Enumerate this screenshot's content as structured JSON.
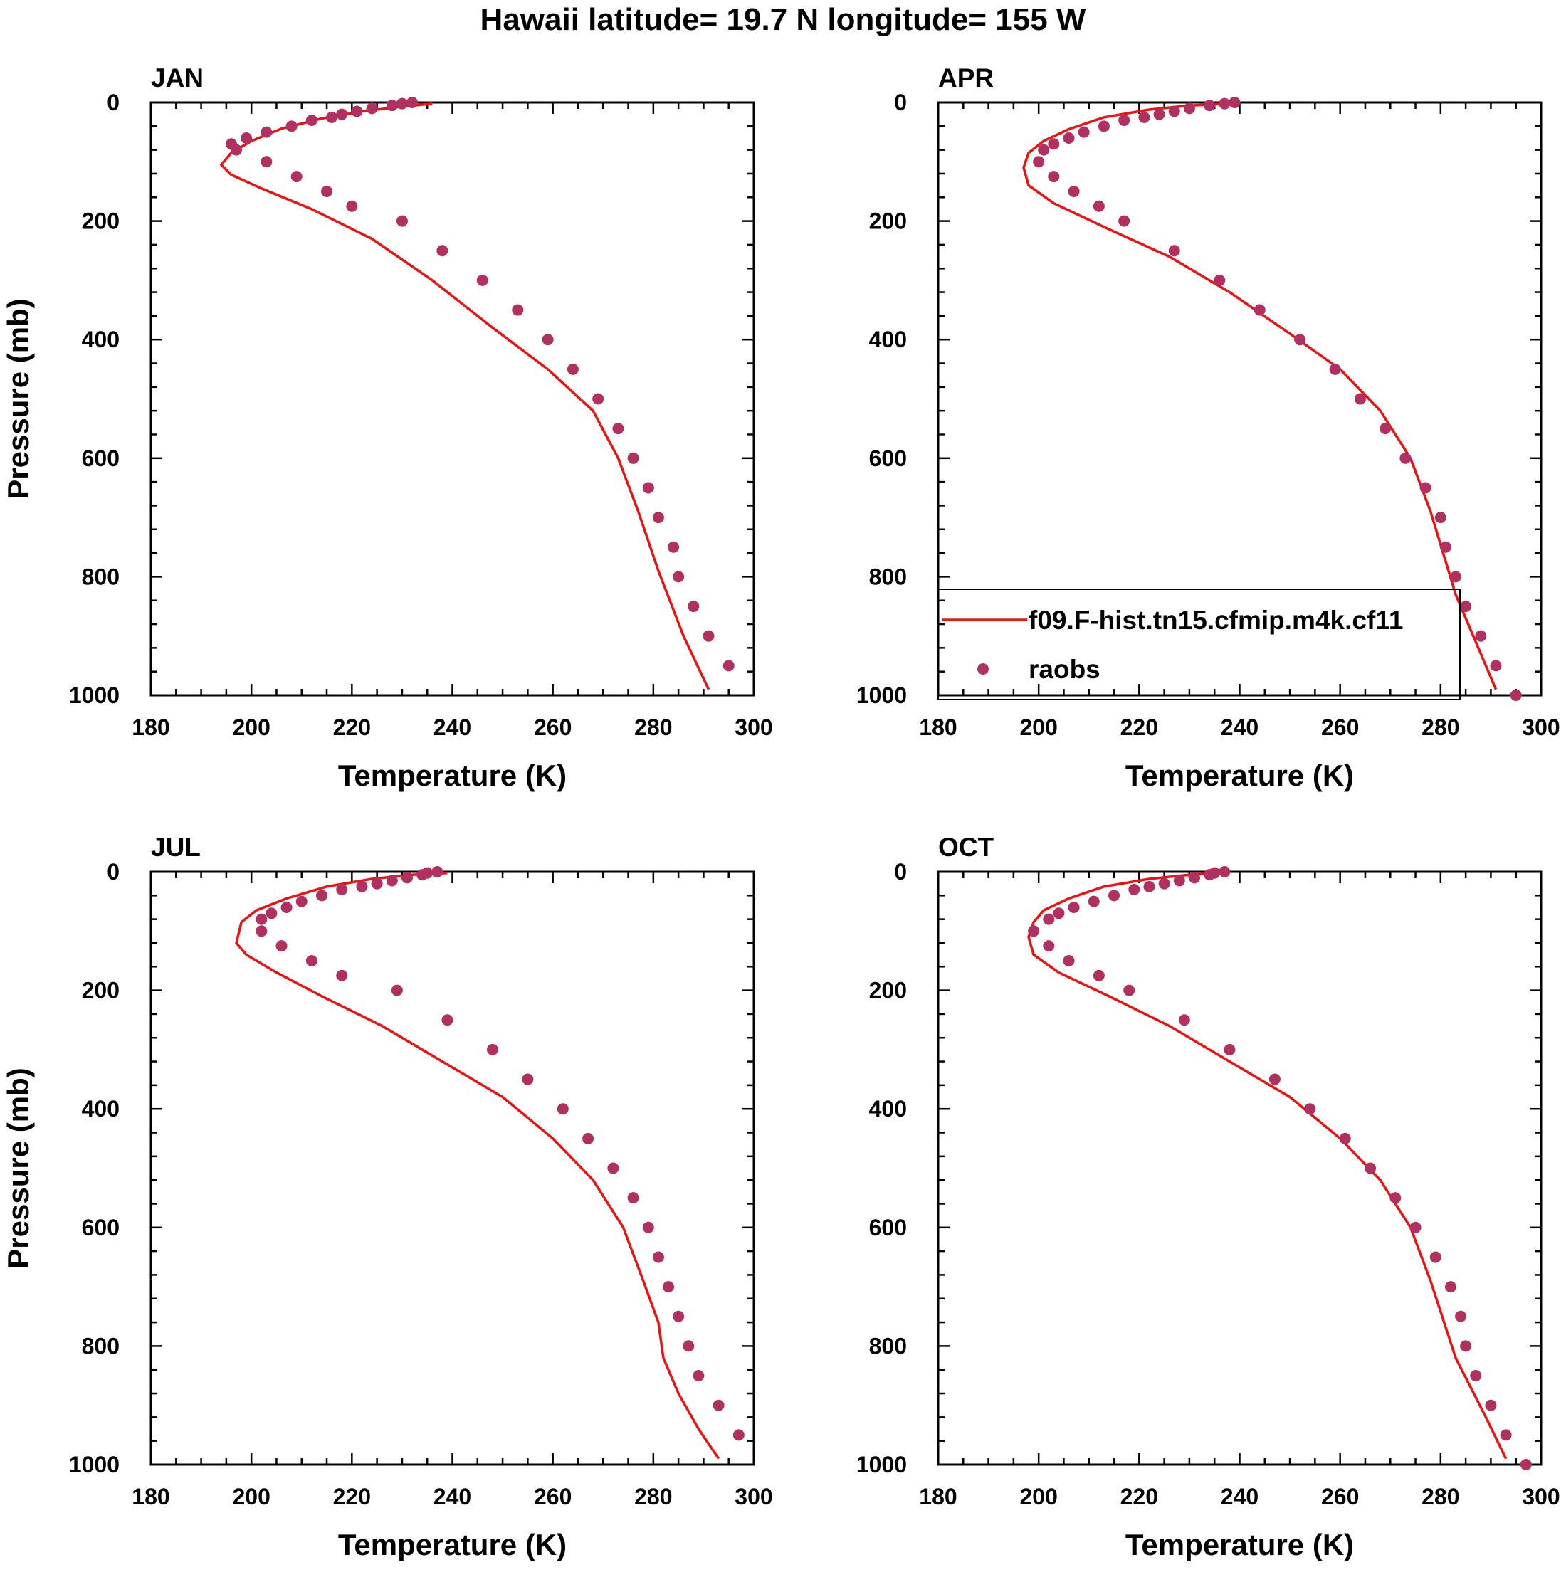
{
  "title": "Hawaii  latitude= 19.7 N longitude= 155 W",
  "colors": {
    "model": "#ee1111",
    "obs": "#b03060"
  },
  "legend": {
    "model_label": "f09.F-hist.tn15.cfmip.m4k.cf11",
    "obs_label": "raobs"
  },
  "chart_data": [
    {
      "type": "scatter",
      "panel": "JAN",
      "title": "JAN",
      "xlabel": "Temperature (K)",
      "ylabel": "Pressure (mb)",
      "xlim": [
        180,
        300
      ],
      "ylim": [
        1000,
        0
      ],
      "xticks": [
        "180",
        "200",
        "220",
        "240",
        "260",
        "280",
        "300"
      ],
      "yticks": [
        "0",
        "200",
        "400",
        "600",
        "800",
        "1000"
      ],
      "series": [
        {
          "name": "f09.F-hist.tn15.cfmip.m4k.cf11",
          "kind": "line",
          "temperature": [
            236,
            230,
            222,
            214,
            206,
            200,
            196,
            194,
            196,
            202,
            212,
            224,
            236,
            248,
            259,
            268,
            273,
            277,
            281,
            286,
            291
          ],
          "pressure": [
            2,
            7,
            15,
            27,
            44,
            65,
            85,
            105,
            122,
            145,
            180,
            230,
            300,
            380,
            450,
            520,
            600,
            690,
            790,
            900,
            990
          ]
        },
        {
          "name": "raobs",
          "kind": "scatter",
          "temperature": [
            232,
            230,
            228,
            224,
            221,
            218,
            216,
            212,
            208,
            203,
            199,
            196,
            197,
            203,
            209,
            215,
            220,
            230,
            238,
            246,
            253,
            259,
            264,
            269,
            273,
            276,
            279,
            281,
            284,
            285,
            288,
            291,
            295
          ],
          "pressure": [
            0,
            2,
            5,
            10,
            15,
            20,
            25,
            30,
            40,
            50,
            60,
            70,
            80,
            100,
            125,
            150,
            175,
            200,
            250,
            300,
            350,
            400,
            450,
            500,
            550,
            600,
            650,
            700,
            750,
            800,
            850,
            900,
            950
          ]
        }
      ]
    },
    {
      "type": "scatter",
      "panel": "APR",
      "title": "APR",
      "xlabel": "Temperature (K)",
      "ylabel": "",
      "xlim": [
        180,
        300
      ],
      "ylim": [
        1000,
        0
      ],
      "xticks": [
        "180",
        "200",
        "220",
        "240",
        "260",
        "280",
        "300"
      ],
      "yticks": [
        "0",
        "200",
        "400",
        "600",
        "800",
        "1000"
      ],
      "legend": true,
      "series": [
        {
          "name": "f09.F-hist.tn15.cfmip.m4k.cf11",
          "kind": "line",
          "temperature": [
            238,
            230,
            222,
            213,
            206,
            201,
            198,
            197,
            198,
            203,
            213,
            226,
            238,
            250,
            260,
            268,
            274,
            278,
            283,
            288,
            291
          ],
          "pressure": [
            2,
            5,
            12,
            25,
            45,
            65,
            85,
            110,
            140,
            170,
            210,
            260,
            320,
            390,
            450,
            520,
            600,
            690,
            830,
            930,
            990
          ]
        },
        {
          "name": "raobs",
          "kind": "scatter",
          "temperature": [
            239,
            237,
            234,
            230,
            227,
            224,
            221,
            217,
            213,
            209,
            206,
            203,
            201,
            200,
            203,
            207,
            212,
            217,
            227,
            236,
            244,
            252,
            259,
            264,
            269,
            273,
            277,
            280,
            281,
            283,
            285,
            288,
            291,
            295
          ],
          "pressure": [
            0,
            2,
            5,
            10,
            15,
            20,
            25,
            30,
            40,
            50,
            60,
            70,
            80,
            100,
            125,
            150,
            175,
            200,
            250,
            300,
            350,
            400,
            450,
            500,
            550,
            600,
            650,
            700,
            750,
            800,
            850,
            900,
            950,
            1000
          ]
        }
      ]
    },
    {
      "type": "scatter",
      "panel": "JUL",
      "title": "JUL",
      "xlabel": "Temperature (K)",
      "ylabel": "Pressure (mb)",
      "xlim": [
        180,
        300
      ],
      "ylim": [
        1000,
        0
      ],
      "xticks": [
        "180",
        "200",
        "220",
        "240",
        "260",
        "280",
        "300"
      ],
      "yticks": [
        "0",
        "200",
        "400",
        "600",
        "800",
        "1000"
      ],
      "series": [
        {
          "name": "f09.F-hist.tn15.cfmip.m4k.cf11",
          "kind": "line",
          "temperature": [
            239,
            232,
            224,
            215,
            207,
            201,
            198,
            197,
            199,
            205,
            214,
            226,
            238,
            250,
            260,
            268,
            274,
            278,
            281,
            282,
            285,
            289,
            293
          ],
          "pressure": [
            2,
            5,
            12,
            25,
            45,
            65,
            85,
            120,
            140,
            170,
            210,
            260,
            320,
            380,
            450,
            520,
            600,
            690,
            760,
            820,
            880,
            940,
            990
          ]
        },
        {
          "name": "raobs",
          "kind": "scatter",
          "temperature": [
            237,
            235,
            234,
            231,
            228,
            225,
            222,
            218,
            214,
            210,
            207,
            204,
            202,
            202,
            206,
            212,
            218,
            229,
            239,
            248,
            255,
            262,
            267,
            272,
            276,
            279,
            281,
            283,
            285,
            287,
            289,
            293,
            297
          ],
          "pressure": [
            0,
            2,
            5,
            10,
            15,
            20,
            25,
            30,
            40,
            50,
            60,
            70,
            80,
            100,
            125,
            150,
            175,
            200,
            250,
            300,
            350,
            400,
            450,
            500,
            550,
            600,
            650,
            700,
            750,
            800,
            850,
            900,
            950
          ]
        }
      ]
    },
    {
      "type": "scatter",
      "panel": "OCT",
      "title": "OCT",
      "xlabel": "Temperature (K)",
      "ylabel": "",
      "xlim": [
        180,
        300
      ],
      "ylim": [
        1000,
        0
      ],
      "xticks": [
        "180",
        "200",
        "220",
        "240",
        "260",
        "280",
        "300"
      ],
      "yticks": [
        "0",
        "200",
        "400",
        "600",
        "800",
        "1000"
      ],
      "series": [
        {
          "name": "f09.F-hist.tn15.cfmip.m4k.cf11",
          "kind": "line",
          "temperature": [
            237,
            230,
            222,
            213,
            206,
            201,
            199,
            198,
            199,
            204,
            214,
            226,
            238,
            250,
            260,
            268,
            274,
            278,
            283,
            289,
            293
          ],
          "pressure": [
            2,
            5,
            12,
            25,
            45,
            65,
            85,
            110,
            140,
            170,
            210,
            260,
            320,
            380,
            450,
            520,
            600,
            690,
            820,
            920,
            990
          ]
        },
        {
          "name": "raobs",
          "kind": "scatter",
          "temperature": [
            237,
            235,
            234,
            231,
            228,
            225,
            222,
            219,
            215,
            211,
            207,
            204,
            202,
            199,
            202,
            206,
            212,
            218,
            229,
            238,
            247,
            254,
            261,
            266,
            271,
            275,
            279,
            282,
            284,
            285,
            287,
            290,
            293,
            297
          ],
          "pressure": [
            0,
            2,
            5,
            10,
            15,
            20,
            25,
            30,
            40,
            50,
            60,
            70,
            80,
            100,
            125,
            150,
            175,
            200,
            250,
            300,
            350,
            400,
            450,
            500,
            550,
            600,
            650,
            700,
            750,
            800,
            850,
            900,
            950,
            1000
          ]
        }
      ]
    }
  ]
}
